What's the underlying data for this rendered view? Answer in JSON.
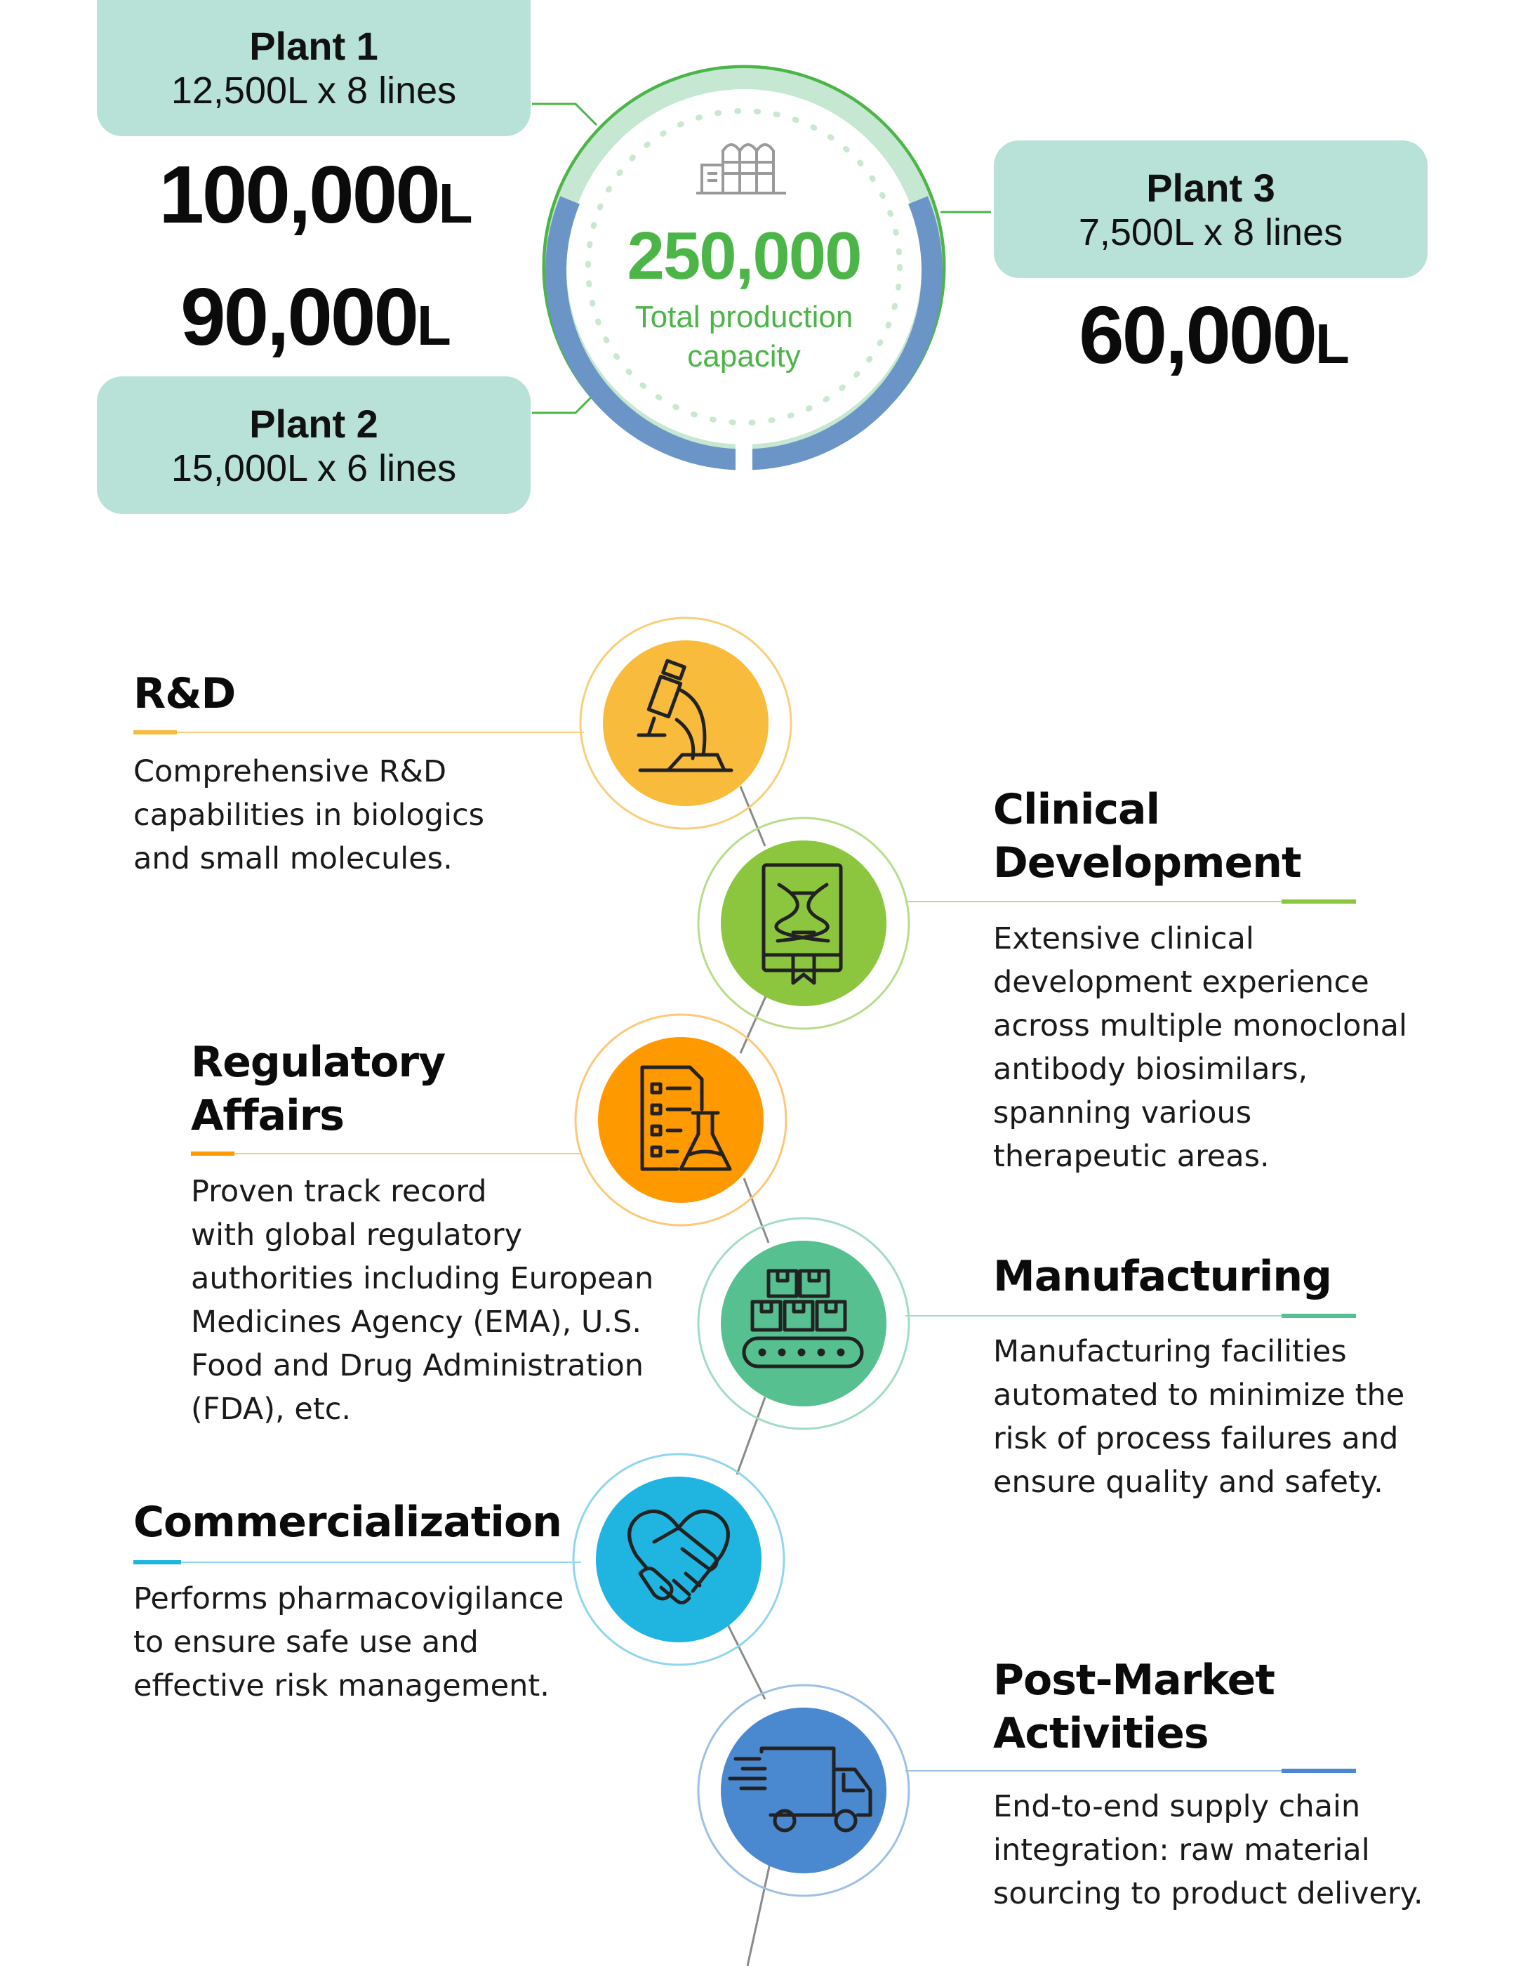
{
  "plants": [
    {
      "title": "Plant 1",
      "lines": "12,500L x 8 lines",
      "capacity": "100,000",
      "unit": "L"
    },
    {
      "title": "Plant 2",
      "lines": "15,000L x 6 lines",
      "capacity": "90,000",
      "unit": "L"
    },
    {
      "title": "Plant 3",
      "lines": "7,500L x 8 lines",
      "capacity": "60,000",
      "unit": "L"
    }
  ],
  "total": {
    "value": "250,000",
    "label_line1": "Total production",
    "label_line2": "capacity"
  },
  "colors": {
    "plant_box": "#b8e1d8",
    "total_green": "#4cb548",
    "rnd": "#f8bb3c",
    "clinical": "#8cc63f",
    "regulatory": "#ff9900",
    "manufacturing": "#56c090",
    "commercialization": "#1fb5e0",
    "post_market": "#4a88cf"
  },
  "sections": [
    {
      "id": "rnd",
      "title_line1": "R&D",
      "title_line2": "",
      "icon": "microscope-icon",
      "text": [
        "Comprehensive R&D",
        "capabilities in biologics",
        "and small molecules."
      ]
    },
    {
      "id": "clinical",
      "title_line1": "Clinical",
      "title_line2": "Development",
      "icon": "dna-book-icon",
      "text": [
        "Extensive clinical",
        "development experience",
        "across multiple monoclonal",
        "antibody biosimilars,",
        "spanning various",
        "therapeutic areas."
      ]
    },
    {
      "id": "regulatory",
      "title_line1": "Regulatory",
      "title_line2": "Affairs",
      "icon": "checklist-flask-icon",
      "text": [
        "Proven track record",
        "with global regulatory",
        "authorities including European",
        "Medicines Agency (EMA), U.S.",
        "Food and Drug Administration",
        "(FDA), etc."
      ]
    },
    {
      "id": "manufacturing",
      "title_line1": "Manufacturing",
      "title_line2": "",
      "icon": "conveyor-icon",
      "text": [
        "Manufacturing facilities",
        "automated to minimize the",
        "risk of process failures and",
        "ensure quality and safety."
      ]
    },
    {
      "id": "commercialization",
      "title_line1": "Commercialization",
      "title_line2": "",
      "icon": "handshake-heart-icon",
      "text": [
        "Performs pharmacovigilance",
        "to ensure safe use and",
        "effective risk management."
      ]
    },
    {
      "id": "post_market",
      "title_line1": "Post-Market",
      "title_line2": "Activities",
      "icon": "delivery-truck-icon",
      "text": [
        "End-to-end supply chain",
        "integration: raw material",
        "sourcing to product delivery."
      ]
    }
  ]
}
